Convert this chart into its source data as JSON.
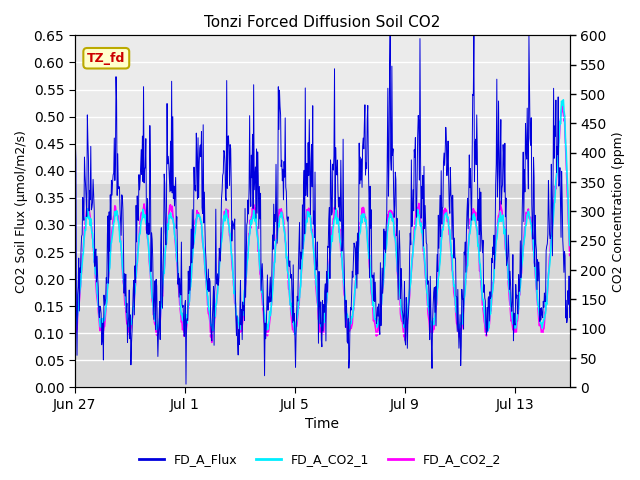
{
  "title": "Tonzi Forced Diffusion Soil CO2",
  "xlabel": "Time",
  "ylabel_left": "CO2 Soil Flux (μmol/m2/s)",
  "ylabel_right": "CO2 Concentration (ppm)",
  "ylim_left": [
    0.0,
    0.65
  ],
  "ylim_right": [
    0,
    600
  ],
  "yticks_left": [
    0.0,
    0.05,
    0.1,
    0.15,
    0.2,
    0.25,
    0.3,
    0.35,
    0.4,
    0.45,
    0.5,
    0.55,
    0.6,
    0.65
  ],
  "yticks_right": [
    0,
    50,
    100,
    150,
    200,
    250,
    300,
    350,
    400,
    450,
    500,
    550,
    600
  ],
  "color_flux": "#0000dd",
  "color_co2_1": "#00eeff",
  "color_co2_2": "#ff00ff",
  "legend_labels": [
    "FD_A_Flux",
    "FD_A_CO2_1",
    "FD_A_CO2_2"
  ],
  "annotation_text": "TZ_fd",
  "annotation_color_text": "#cc0000",
  "annotation_bg": "#ffffcc",
  "annotation_border": "#bbaa00",
  "bg_upper": "#f0f0f0",
  "bg_lower": "#e0e0e0",
  "bg_color": "#f0f0f0",
  "grid_color": "#ffffff",
  "xtick_labels": [
    "Jun 27",
    "Jul 1",
    "Jul 5",
    "Jul 9",
    "Jul 13"
  ],
  "xtick_positions": [
    0,
    4,
    8,
    12,
    16
  ],
  "xlim": [
    0,
    18
  ]
}
